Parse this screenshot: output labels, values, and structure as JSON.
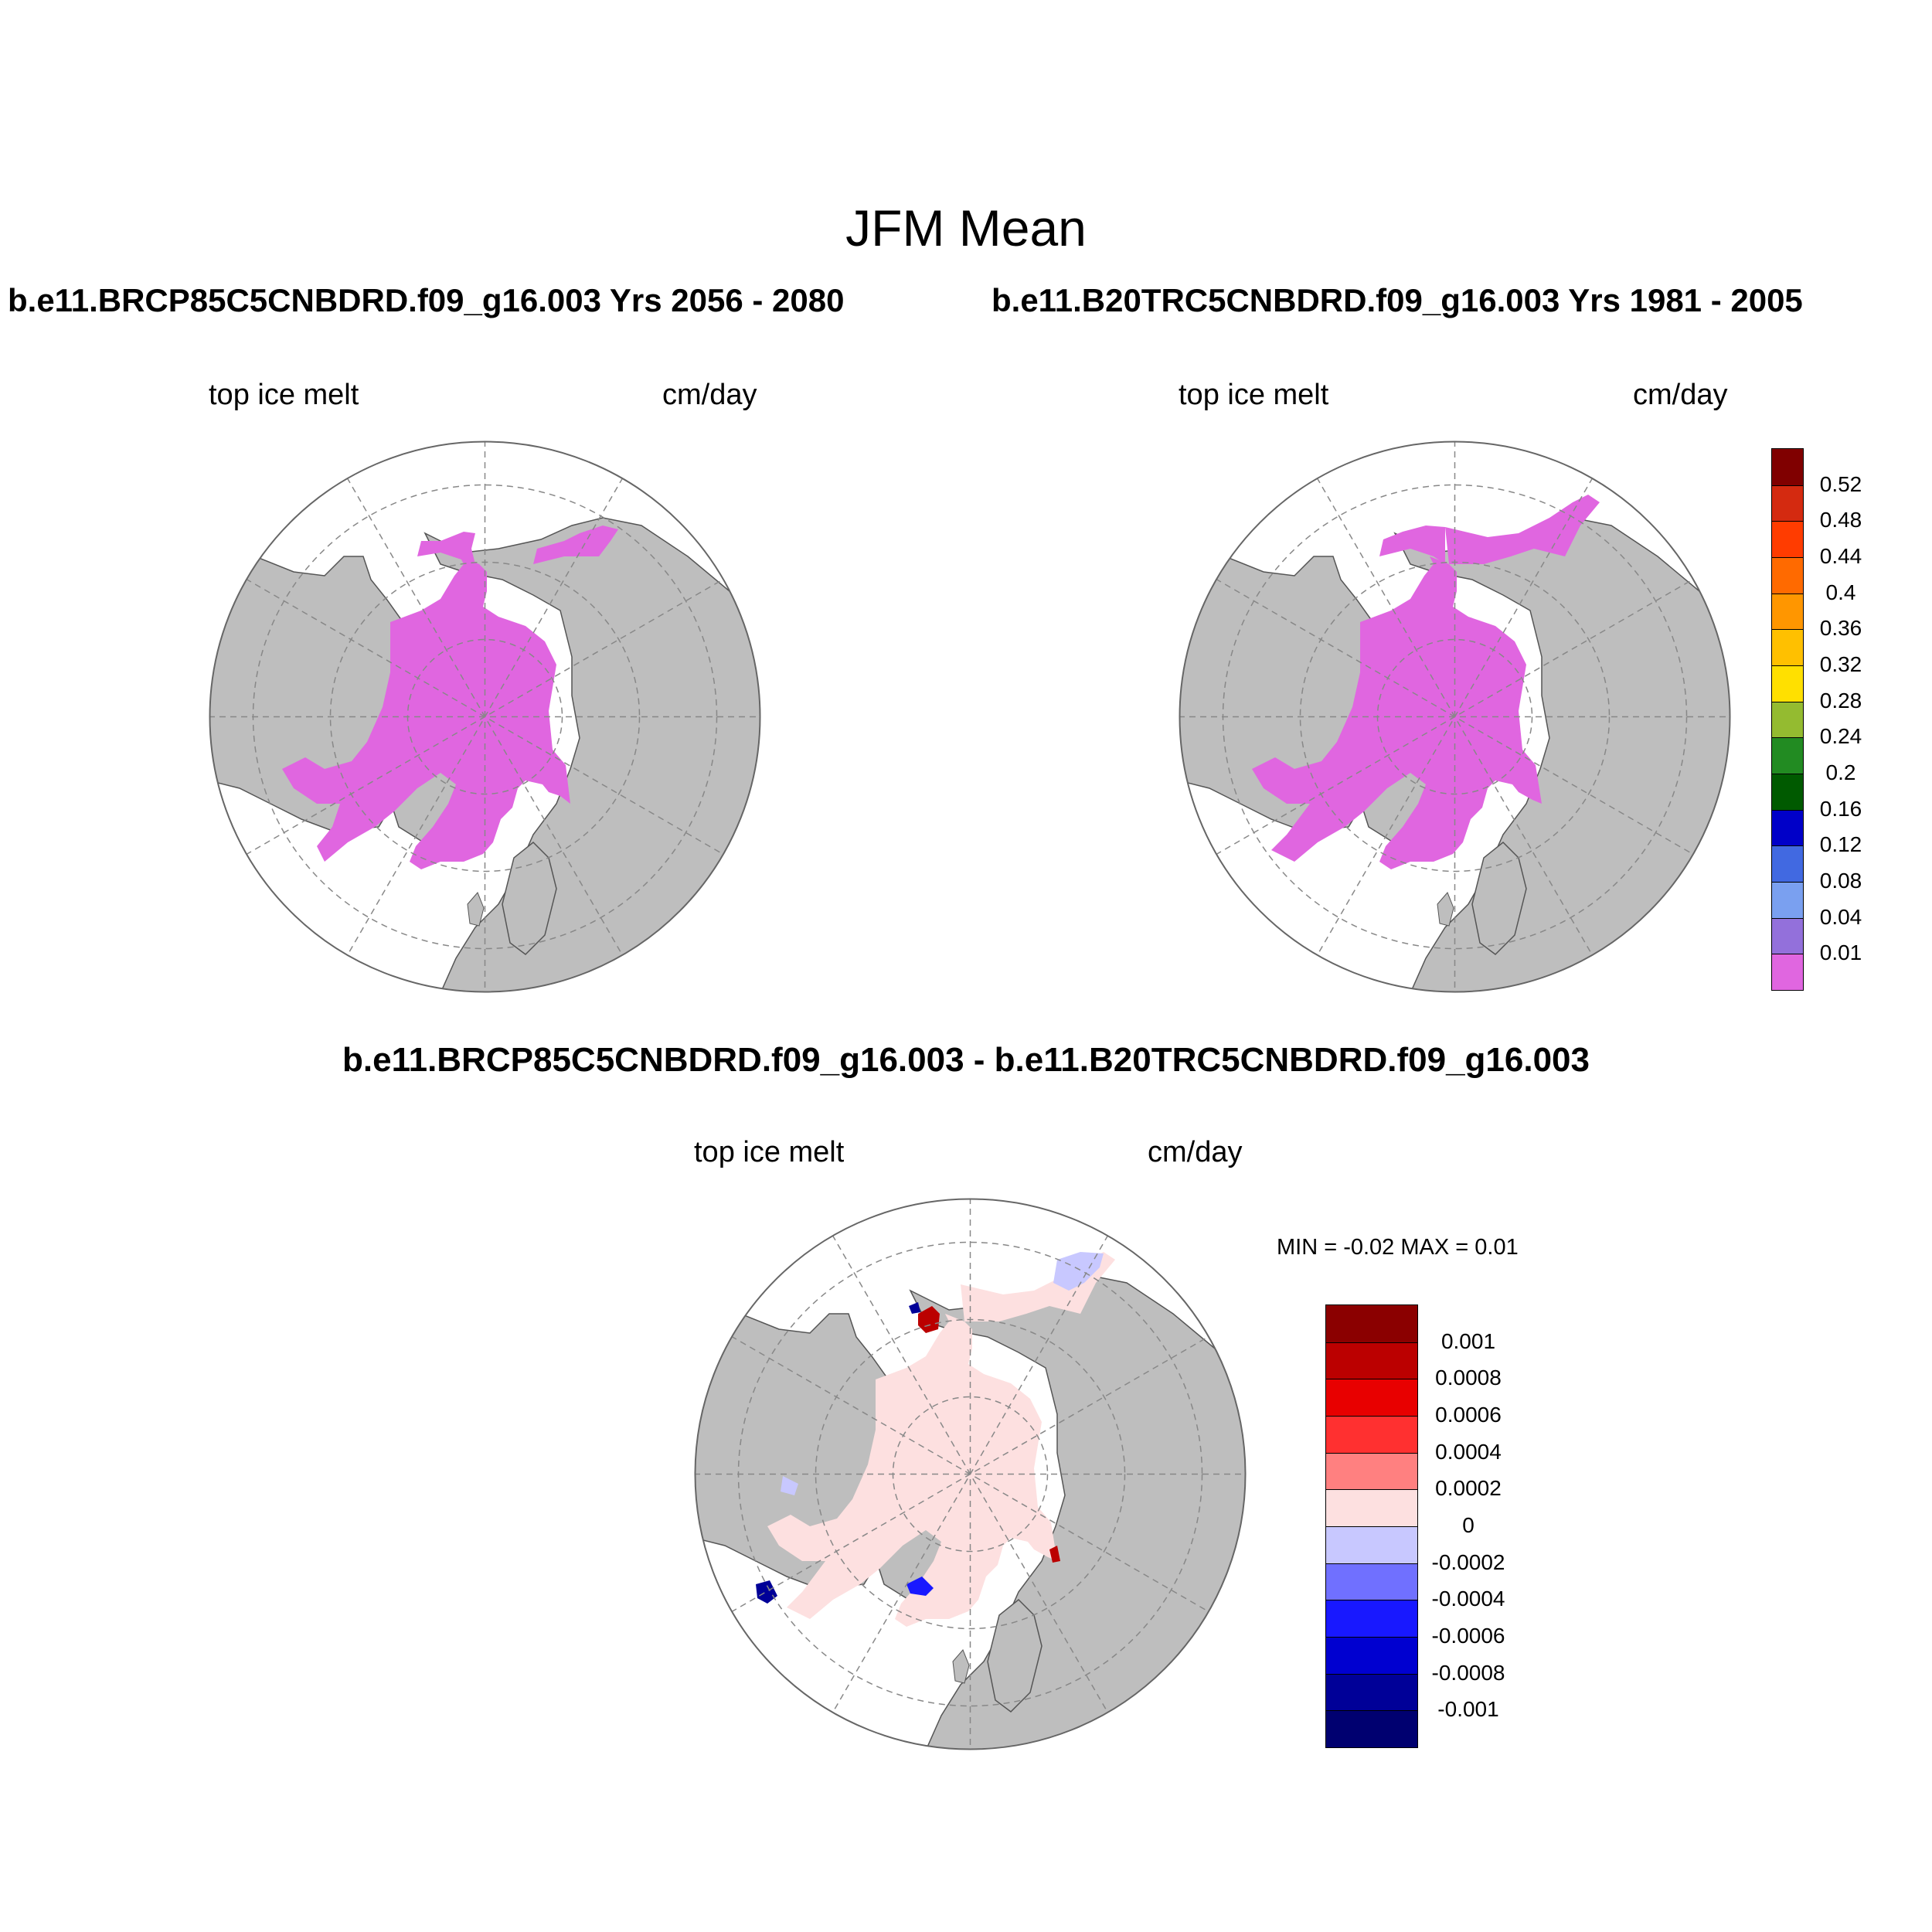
{
  "title": "JFM Mean",
  "panels": {
    "left": {
      "title": "b.e11.BRCP85C5CNBDRD.f09_g16.003  Yrs 2056 - 2080",
      "variable": "top ice melt",
      "units": "cm/day"
    },
    "right": {
      "title": "b.e11.B20TRC5CNBDRD.f09_g16.003  Yrs 1981 - 2005",
      "variable": "top ice melt",
      "units": "cm/day"
    },
    "diff": {
      "title": "b.e11.BRCP85C5CNBDRD.f09_g16.003 - b.e11.B20TRC5CNBDRD.f09_g16.003",
      "variable": "top ice melt",
      "units": "cm/day",
      "minmax": "MIN =  -0.02 MAX =   0.01"
    }
  },
  "colorbar_main": {
    "labels": [
      "0.52",
      "0.48",
      "0.44",
      "0.4",
      "0.36",
      "0.32",
      "0.28",
      "0.24",
      "0.2",
      "0.16",
      "0.12",
      "0.08",
      "0.04",
      "0.01"
    ],
    "colors": [
      "#800000",
      "#d42a10",
      "#ff3c00",
      "#ff6a00",
      "#ff9600",
      "#ffc000",
      "#ffe000",
      "#94bb30",
      "#228b22",
      "#005a00",
      "#0000c8",
      "#4169e1",
      "#7aa0f0",
      "#9370db",
      "#e066e0"
    ]
  },
  "colorbar_diff": {
    "labels": [
      "0.001",
      "0.0008",
      "0.0006",
      "0.0004",
      "0.0002",
      "0",
      "-0.0002",
      "-0.0004",
      "-0.0006",
      "-0.0008",
      "-0.001"
    ],
    "colors": [
      "#8b0000",
      "#bb0000",
      "#e80000",
      "#ff3030",
      "#ff8080",
      "#fde0e0",
      "#c8c8ff",
      "#7070ff",
      "#1818ff",
      "#0000d0",
      "#000098",
      "#000070"
    ]
  },
  "map_colors": {
    "land": "#bebebe",
    "ocean": "#ffffff",
    "ice_melt": "#e066e0",
    "diff_positive_small": "#fde0e0",
    "diff_negative_small": "#c8c8ff",
    "diff_strong_pos": "#bb0000",
    "diff_strong_neg": "#000098"
  }
}
